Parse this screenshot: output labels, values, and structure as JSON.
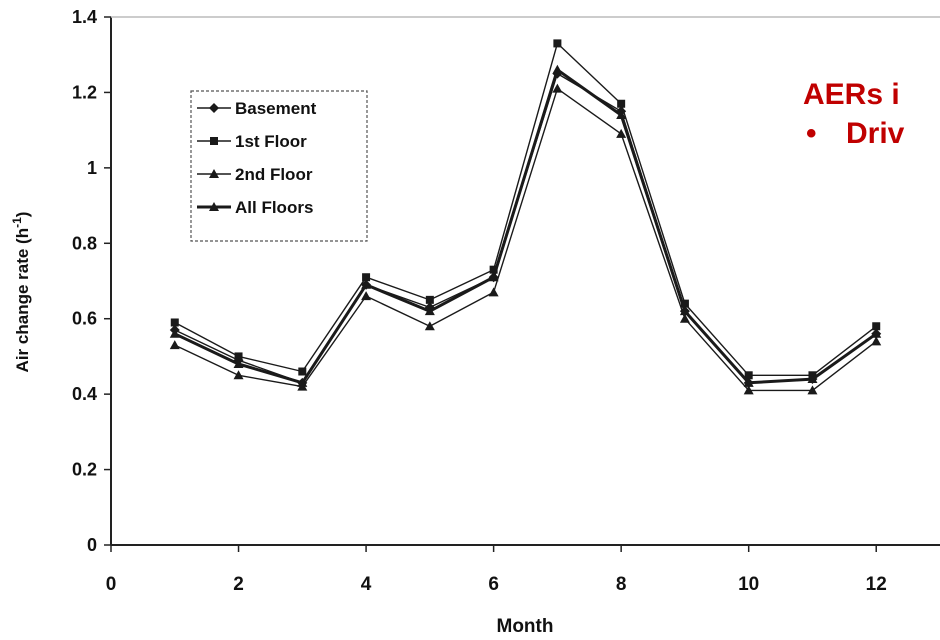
{
  "chart_data": {
    "type": "line",
    "title": "",
    "xlabel": "Month",
    "ylabel": "Air change rate (h⁻¹)",
    "xlim": [
      0,
      13
    ],
    "ylim": [
      0,
      1.4
    ],
    "x_ticks": [
      0,
      2,
      4,
      6,
      8,
      10,
      12
    ],
    "x_tick_labels": [
      "0",
      "2",
      "4",
      "6",
      "8",
      "10",
      "12"
    ],
    "y_ticks": [
      0,
      0.2,
      0.4,
      0.6,
      0.8,
      1,
      1.2,
      1.4
    ],
    "y_tick_labels": [
      "0",
      "0.2",
      "0.4",
      "0.6",
      "0.8",
      "1",
      "1.2",
      "1.4"
    ],
    "grid": false,
    "legend_position": "top-left",
    "x": [
      1,
      2,
      3,
      4,
      5,
      6,
      7,
      8,
      9,
      10,
      11,
      12
    ],
    "series": [
      {
        "name": "Basement",
        "marker": "diamond",
        "stroke_width": 1.4,
        "values": [
          0.57,
          0.49,
          0.43,
          0.69,
          0.63,
          0.71,
          1.25,
          1.15,
          0.62,
          0.43,
          0.44,
          0.56
        ]
      },
      {
        "name": "1st Floor",
        "marker": "square",
        "stroke_width": 1.4,
        "values": [
          0.59,
          0.5,
          0.46,
          0.71,
          0.65,
          0.73,
          1.33,
          1.17,
          0.64,
          0.45,
          0.45,
          0.58
        ]
      },
      {
        "name": "2nd Floor",
        "marker": "triangle",
        "stroke_width": 1.4,
        "values": [
          0.53,
          0.45,
          0.42,
          0.66,
          0.58,
          0.67,
          1.21,
          1.09,
          0.6,
          0.41,
          0.41,
          0.54
        ]
      },
      {
        "name": "All Floors",
        "marker": "triangle",
        "stroke_width": 3,
        "values": [
          0.56,
          0.48,
          0.43,
          0.69,
          0.62,
          0.71,
          1.26,
          1.14,
          0.62,
          0.43,
          0.44,
          0.56
        ]
      }
    ]
  },
  "overlay": {
    "title": "AERs i",
    "bullet": "•",
    "bullet_text": "Driv",
    "color": "#c00000"
  },
  "colors": {
    "line": "#1a1a1a",
    "axis": "#222222",
    "text": "#111111",
    "legend_border": "#555555"
  }
}
